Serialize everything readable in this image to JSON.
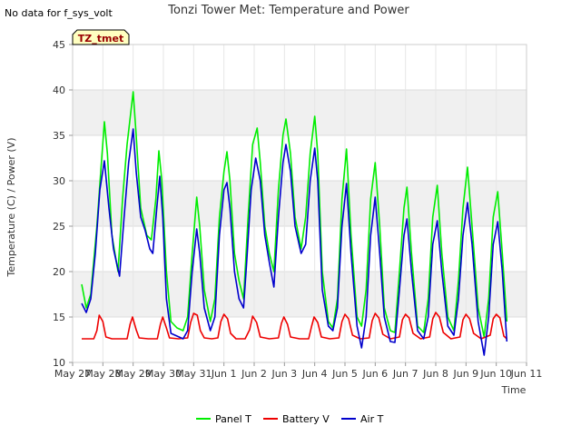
{
  "chart_data": {
    "type": "line",
    "title": "Tonzi Tower Met: Temperature and Power",
    "note": "No data for f_sys_volt",
    "tag": "TZ_tmet",
    "xlabel": "Time",
    "ylabel": "Temperature (C) / Power (V)",
    "ylim": [
      10,
      45
    ],
    "yticks": [
      10,
      15,
      20,
      25,
      30,
      35,
      40,
      45
    ],
    "xlim": [
      0,
      15
    ],
    "xticks": [
      {
        "pos": 0,
        "label": "May 27"
      },
      {
        "pos": 1,
        "label": "May 28"
      },
      {
        "pos": 2,
        "label": "May 29"
      },
      {
        "pos": 3,
        "label": "May 30"
      },
      {
        "pos": 4,
        "label": "May 31"
      },
      {
        "pos": 5,
        "label": "Jun 1"
      },
      {
        "pos": 6,
        "label": "Jun 2"
      },
      {
        "pos": 7,
        "label": "Jun 3"
      },
      {
        "pos": 8,
        "label": "Jun 4"
      },
      {
        "pos": 9,
        "label": "Jun 5"
      },
      {
        "pos": 10,
        "label": "Jun 6"
      },
      {
        "pos": 11,
        "label": "Jun 7"
      },
      {
        "pos": 12,
        "label": "Jun 8"
      },
      {
        "pos": 13,
        "label": "Jun 9"
      },
      {
        "pos": 14,
        "label": "Jun 10"
      },
      {
        "pos": 15,
        "label": "Jun 11"
      }
    ],
    "grid": true,
    "legend_position": "bottom",
    "series": [
      {
        "name": "Panel T",
        "color": "#00ee00",
        "points": [
          [
            0.3,
            18.6
          ],
          [
            0.45,
            16
          ],
          [
            0.6,
            17.5
          ],
          [
            0.8,
            25
          ],
          [
            0.95,
            32
          ],
          [
            1.05,
            36.5
          ],
          [
            1.15,
            33
          ],
          [
            1.3,
            24
          ],
          [
            1.5,
            20
          ],
          [
            1.65,
            28
          ],
          [
            1.8,
            34
          ],
          [
            2.0,
            39.8
          ],
          [
            2.1,
            35
          ],
          [
            2.25,
            27
          ],
          [
            2.45,
            24
          ],
          [
            2.6,
            23.5
          ],
          [
            2.75,
            28
          ],
          [
            2.85,
            33.3
          ],
          [
            2.95,
            30
          ],
          [
            3.1,
            20
          ],
          [
            3.25,
            14.5
          ],
          [
            3.45,
            13.8
          ],
          [
            3.65,
            13.5
          ],
          [
            3.8,
            15
          ],
          [
            3.95,
            22
          ],
          [
            4.1,
            28.2
          ],
          [
            4.2,
            25
          ],
          [
            4.35,
            18
          ],
          [
            4.55,
            14.5
          ],
          [
            4.7,
            17
          ],
          [
            4.85,
            26
          ],
          [
            5.0,
            31
          ],
          [
            5.1,
            33.2
          ],
          [
            5.2,
            30
          ],
          [
            5.35,
            22
          ],
          [
            5.5,
            19
          ],
          [
            5.65,
            17
          ],
          [
            5.8,
            26
          ],
          [
            5.95,
            34
          ],
          [
            6.1,
            35.8
          ],
          [
            6.2,
            32
          ],
          [
            6.35,
            25
          ],
          [
            6.5,
            22
          ],
          [
            6.65,
            20
          ],
          [
            6.8,
            29
          ],
          [
            6.95,
            35
          ],
          [
            7.05,
            36.8
          ],
          [
            7.2,
            33
          ],
          [
            7.35,
            26
          ],
          [
            7.55,
            22.5
          ],
          [
            7.7,
            26
          ],
          [
            7.85,
            33
          ],
          [
            8.0,
            37.1
          ],
          [
            8.1,
            33
          ],
          [
            8.25,
            20
          ],
          [
            8.45,
            14.5
          ],
          [
            8.6,
            13.8
          ],
          [
            8.75,
            17
          ],
          [
            8.9,
            28
          ],
          [
            9.05,
            33.5
          ],
          [
            9.2,
            24
          ],
          [
            9.4,
            15
          ],
          [
            9.55,
            14
          ],
          [
            9.7,
            18
          ],
          [
            9.85,
            28
          ],
          [
            10.0,
            32
          ],
          [
            10.15,
            25
          ],
          [
            10.3,
            16
          ],
          [
            10.5,
            13.5
          ],
          [
            10.65,
            13.3
          ],
          [
            10.8,
            20
          ],
          [
            10.95,
            27
          ],
          [
            11.05,
            29.3
          ],
          [
            11.2,
            22
          ],
          [
            11.4,
            14
          ],
          [
            11.6,
            13.3
          ],
          [
            11.75,
            17
          ],
          [
            11.9,
            26
          ],
          [
            12.05,
            29.5
          ],
          [
            12.2,
            22
          ],
          [
            12.4,
            15
          ],
          [
            12.6,
            13.5
          ],
          [
            12.75,
            19
          ],
          [
            12.9,
            27
          ],
          [
            13.05,
            31.5
          ],
          [
            13.2,
            25
          ],
          [
            13.4,
            16
          ],
          [
            13.6,
            12.8
          ],
          [
            13.75,
            17
          ],
          [
            13.9,
            26
          ],
          [
            14.05,
            28.8
          ],
          [
            14.2,
            22
          ],
          [
            14.35,
            14.5
          ]
        ]
      },
      {
        "name": "Battery V",
        "color": "#ee0000",
        "points": [
          [
            0.3,
            12.6
          ],
          [
            0.7,
            12.6
          ],
          [
            0.8,
            13.5
          ],
          [
            0.88,
            15.2
          ],
          [
            1.0,
            14.5
          ],
          [
            1.1,
            12.8
          ],
          [
            1.3,
            12.6
          ],
          [
            1.8,
            12.6
          ],
          [
            1.9,
            14.2
          ],
          [
            1.98,
            15.0
          ],
          [
            2.1,
            13.6
          ],
          [
            2.2,
            12.7
          ],
          [
            2.5,
            12.6
          ],
          [
            2.8,
            12.6
          ],
          [
            2.9,
            14.2
          ],
          [
            2.98,
            15.0
          ],
          [
            3.1,
            13.8
          ],
          [
            3.2,
            12.7
          ],
          [
            3.5,
            12.6
          ],
          [
            3.8,
            12.7
          ],
          [
            3.9,
            14.4
          ],
          [
            4.0,
            15.4
          ],
          [
            4.12,
            15.2
          ],
          [
            4.22,
            13.5
          ],
          [
            4.35,
            12.7
          ],
          [
            4.6,
            12.6
          ],
          [
            4.8,
            12.7
          ],
          [
            4.9,
            14.5
          ],
          [
            5.0,
            15.3
          ],
          [
            5.12,
            14.8
          ],
          [
            5.22,
            13.2
          ],
          [
            5.4,
            12.6
          ],
          [
            5.7,
            12.6
          ],
          [
            5.85,
            13.6
          ],
          [
            5.95,
            15.1
          ],
          [
            6.08,
            14.4
          ],
          [
            6.2,
            12.8
          ],
          [
            6.5,
            12.6
          ],
          [
            6.8,
            12.7
          ],
          [
            6.9,
            14.3
          ],
          [
            6.98,
            15.0
          ],
          [
            7.1,
            14.2
          ],
          [
            7.2,
            12.8
          ],
          [
            7.5,
            12.6
          ],
          [
            7.8,
            12.6
          ],
          [
            7.9,
            14.0
          ],
          [
            7.98,
            15.0
          ],
          [
            8.1,
            14.4
          ],
          [
            8.22,
            12.8
          ],
          [
            8.5,
            12.6
          ],
          [
            8.8,
            12.7
          ],
          [
            8.9,
            14.5
          ],
          [
            9.0,
            15.3
          ],
          [
            9.12,
            14.8
          ],
          [
            9.25,
            13.0
          ],
          [
            9.5,
            12.6
          ],
          [
            9.8,
            12.7
          ],
          [
            9.9,
            14.6
          ],
          [
            10.0,
            15.4
          ],
          [
            10.12,
            14.9
          ],
          [
            10.25,
            13.1
          ],
          [
            10.5,
            12.6
          ],
          [
            10.8,
            12.8
          ],
          [
            10.9,
            14.7
          ],
          [
            11.0,
            15.3
          ],
          [
            11.12,
            14.9
          ],
          [
            11.25,
            13.2
          ],
          [
            11.5,
            12.6
          ],
          [
            11.8,
            12.8
          ],
          [
            11.9,
            14.8
          ],
          [
            12.0,
            15.5
          ],
          [
            12.12,
            15.0
          ],
          [
            12.25,
            13.3
          ],
          [
            12.5,
            12.6
          ],
          [
            12.8,
            12.8
          ],
          [
            12.9,
            14.7
          ],
          [
            13.0,
            15.3
          ],
          [
            13.12,
            14.8
          ],
          [
            13.25,
            13.2
          ],
          [
            13.5,
            12.6
          ],
          [
            13.8,
            13.0
          ],
          [
            13.9,
            14.8
          ],
          [
            14.0,
            15.3
          ],
          [
            14.12,
            14.9
          ],
          [
            14.25,
            12.9
          ],
          [
            14.35,
            12.6
          ]
        ]
      },
      {
        "name": "Air T",
        "color": "#0000cc",
        "points": [
          [
            0.3,
            16.5
          ],
          [
            0.45,
            15.5
          ],
          [
            0.6,
            17
          ],
          [
            0.75,
            22
          ],
          [
            0.9,
            29
          ],
          [
            1.05,
            32.2
          ],
          [
            1.2,
            27
          ],
          [
            1.35,
            22.5
          ],
          [
            1.45,
            21
          ],
          [
            1.55,
            19.5
          ],
          [
            1.7,
            26
          ],
          [
            1.85,
            32
          ],
          [
            2.0,
            35.7
          ],
          [
            2.1,
            31
          ],
          [
            2.25,
            26
          ],
          [
            2.4,
            24.5
          ],
          [
            2.55,
            22.5
          ],
          [
            2.65,
            22
          ],
          [
            2.78,
            27
          ],
          [
            2.88,
            30.5
          ],
          [
            2.98,
            26
          ],
          [
            3.1,
            17
          ],
          [
            3.25,
            13.2
          ],
          [
            3.45,
            12.9
          ],
          [
            3.65,
            12.6
          ],
          [
            3.8,
            13.5
          ],
          [
            3.95,
            20
          ],
          [
            4.1,
            24.7
          ],
          [
            4.2,
            22
          ],
          [
            4.35,
            16
          ],
          [
            4.55,
            13.5
          ],
          [
            4.7,
            15
          ],
          [
            4.85,
            24
          ],
          [
            5.0,
            29
          ],
          [
            5.1,
            29.8
          ],
          [
            5.2,
            27
          ],
          [
            5.35,
            20
          ],
          [
            5.5,
            17
          ],
          [
            5.65,
            16
          ],
          [
            5.75,
            21
          ],
          [
            5.9,
            29
          ],
          [
            6.05,
            32.5
          ],
          [
            6.2,
            30
          ],
          [
            6.35,
            24
          ],
          [
            6.5,
            21
          ],
          [
            6.65,
            18.3
          ],
          [
            6.8,
            26
          ],
          [
            6.95,
            32
          ],
          [
            7.05,
            34
          ],
          [
            7.2,
            31
          ],
          [
            7.35,
            25
          ],
          [
            7.55,
            22
          ],
          [
            7.7,
            23
          ],
          [
            7.85,
            30
          ],
          [
            8.0,
            33.6
          ],
          [
            8.1,
            30
          ],
          [
            8.25,
            18
          ],
          [
            8.45,
            14
          ],
          [
            8.6,
            13.5
          ],
          [
            8.75,
            16
          ],
          [
            8.9,
            25
          ],
          [
            9.05,
            29.7
          ],
          [
            9.2,
            22
          ],
          [
            9.4,
            14
          ],
          [
            9.55,
            11.6
          ],
          [
            9.7,
            15
          ],
          [
            9.85,
            24
          ],
          [
            10.0,
            28.2
          ],
          [
            10.15,
            22
          ],
          [
            10.3,
            15
          ],
          [
            10.5,
            12.3
          ],
          [
            10.65,
            12.2
          ],
          [
            10.8,
            18
          ],
          [
            10.95,
            24
          ],
          [
            11.05,
            25.8
          ],
          [
            11.2,
            20
          ],
          [
            11.4,
            13.5
          ],
          [
            11.6,
            12.6
          ],
          [
            11.75,
            15
          ],
          [
            11.9,
            23
          ],
          [
            12.05,
            25.6
          ],
          [
            12.2,
            20
          ],
          [
            12.4,
            14
          ],
          [
            12.6,
            13.0
          ],
          [
            12.75,
            17
          ],
          [
            12.9,
            24
          ],
          [
            13.05,
            27.6
          ],
          [
            13.2,
            23
          ],
          [
            13.4,
            14.5
          ],
          [
            13.6,
            10.8
          ],
          [
            13.75,
            15
          ],
          [
            13.9,
            23
          ],
          [
            14.05,
            25.5
          ],
          [
            14.2,
            20
          ],
          [
            14.35,
            12.3
          ]
        ]
      }
    ]
  }
}
